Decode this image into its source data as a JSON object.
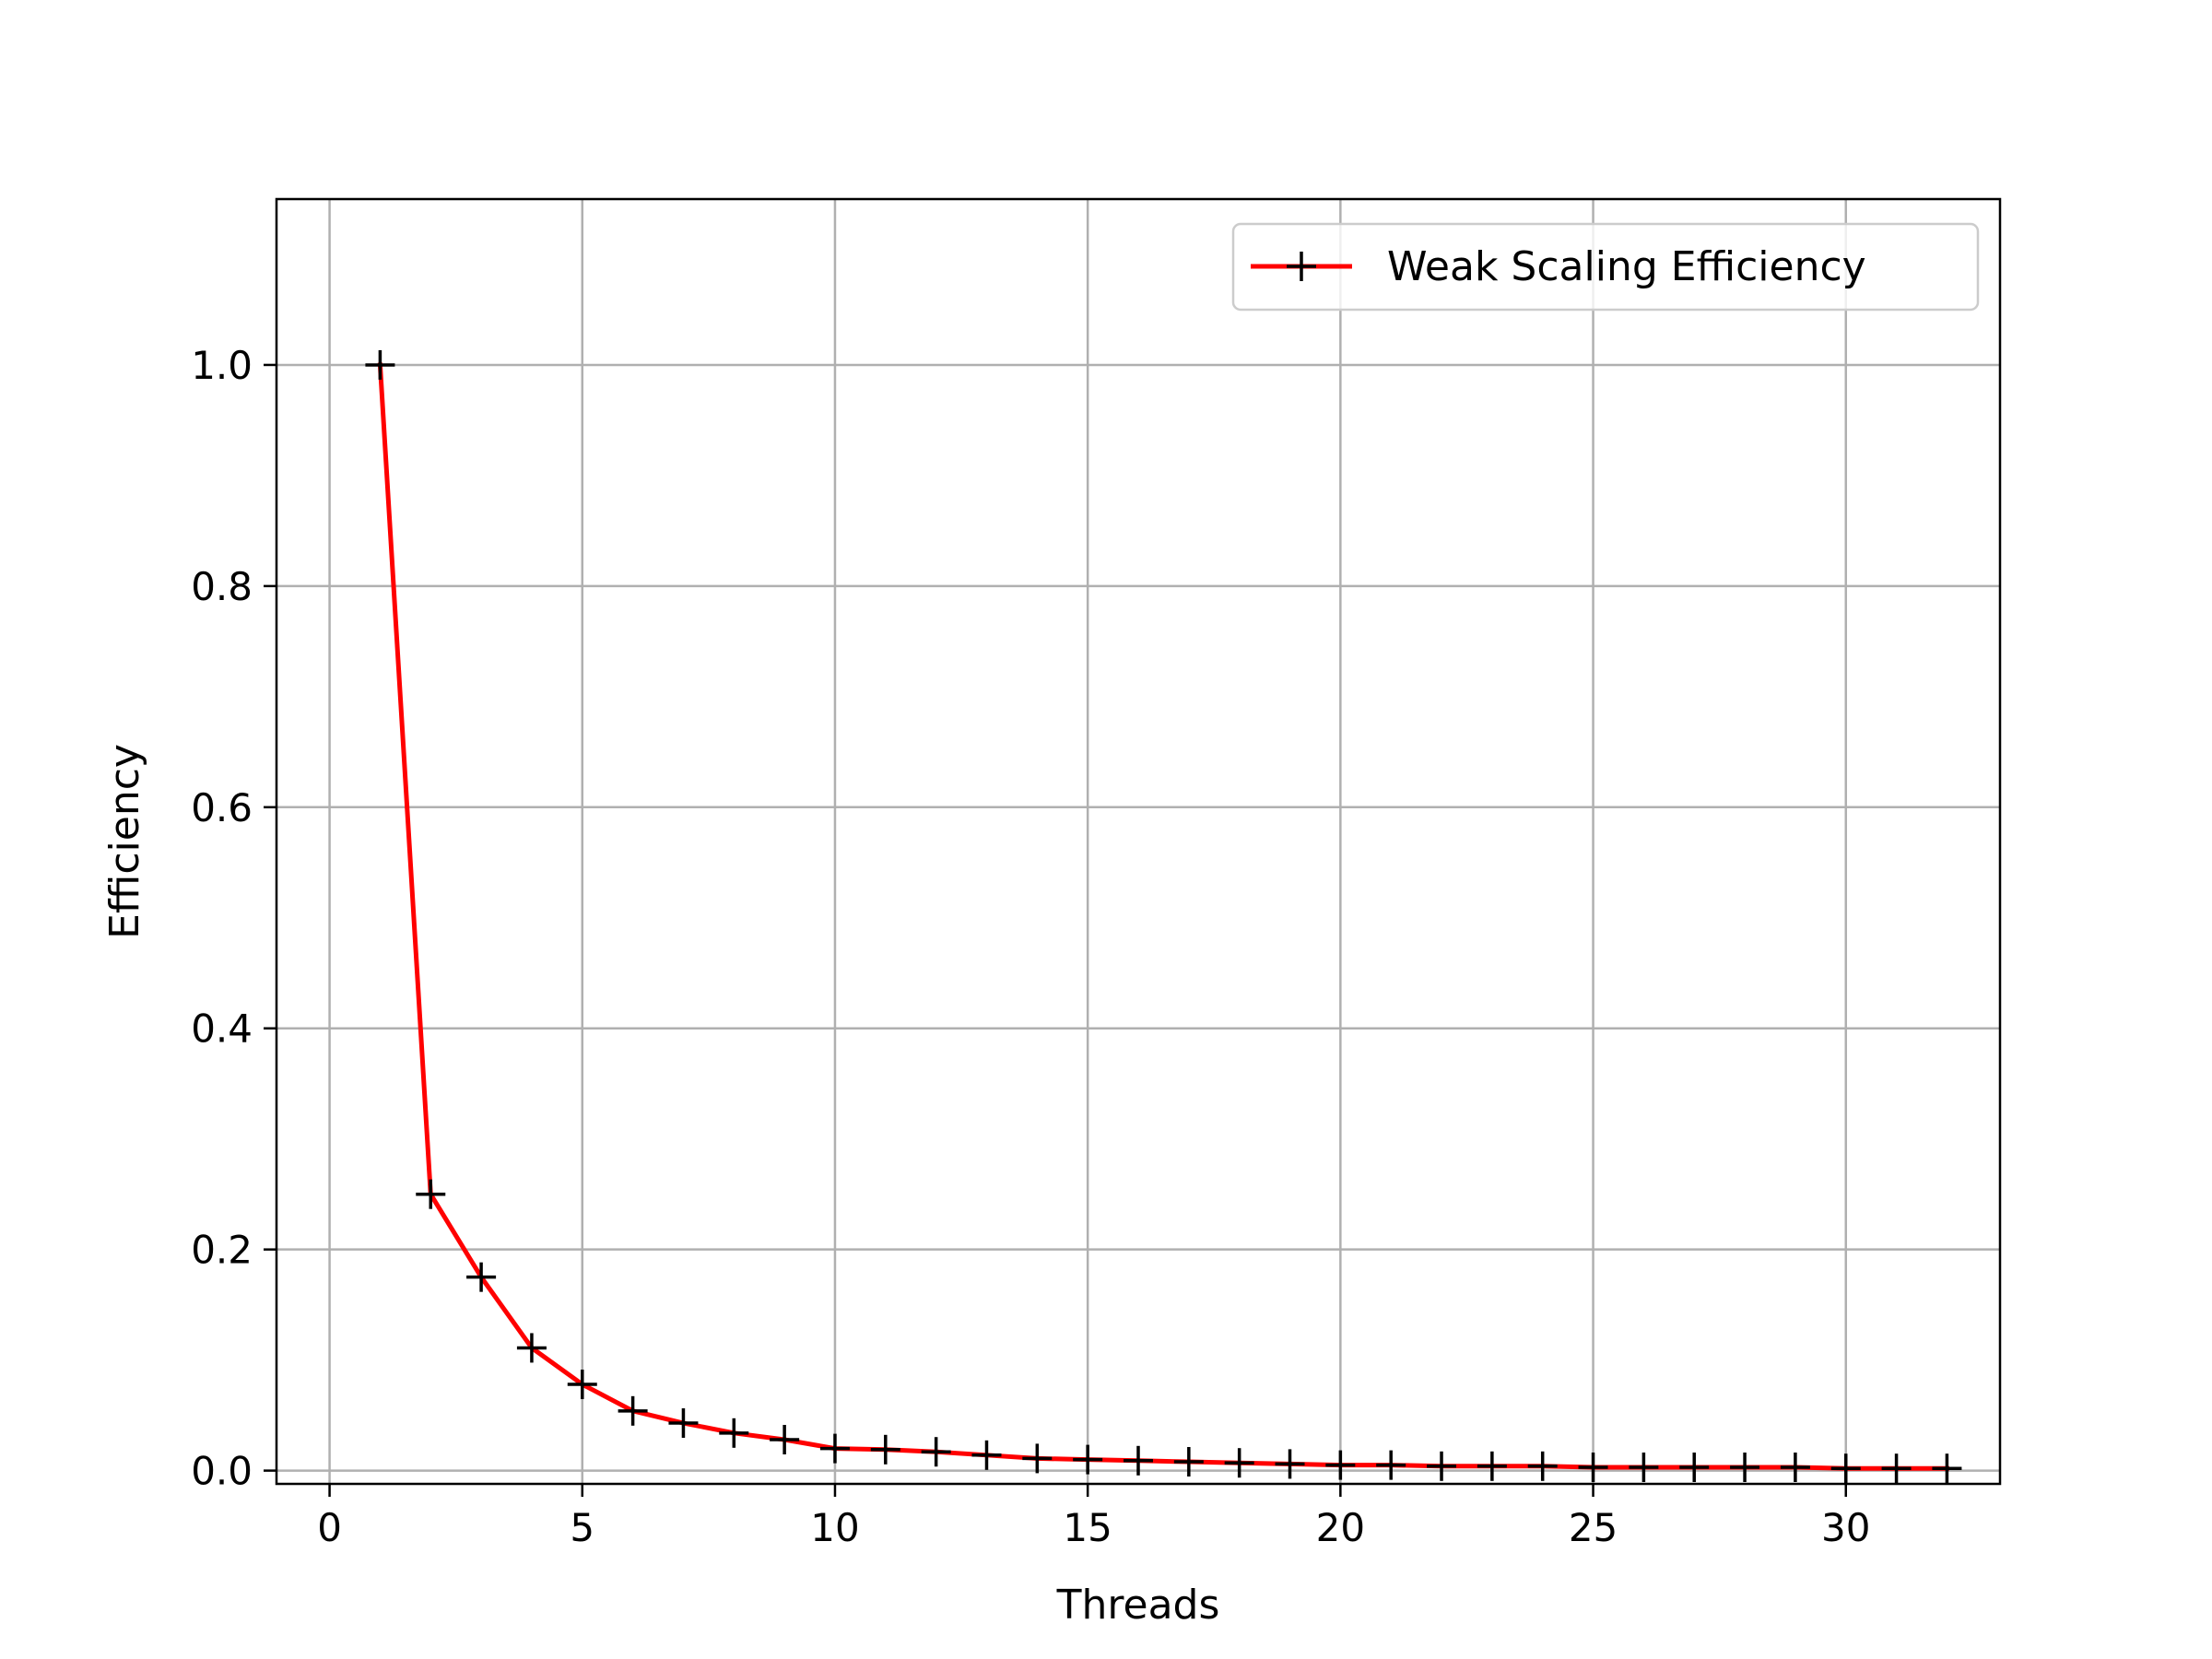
{
  "chart_data": {
    "type": "line",
    "title": "",
    "xlabel": "Threads",
    "ylabel": "Efficiency",
    "xlim": [
      -1.05,
      33.05
    ],
    "ylim": [
      -0.012,
      1.15
    ],
    "xticks": [
      0,
      5,
      10,
      15,
      20,
      25,
      30
    ],
    "yticks": [
      0.0,
      0.2,
      0.4,
      0.6,
      0.8,
      1.0
    ],
    "xtick_labels": [
      "0",
      "5",
      "10",
      "15",
      "20",
      "25",
      "30"
    ],
    "ytick_labels": [
      "0.0",
      "0.2",
      "0.4",
      "0.6",
      "0.8",
      "1.0"
    ],
    "grid": true,
    "legend_position": "top-right",
    "series": [
      {
        "name": "Weak Scaling Efficiency",
        "color": "#ff0000",
        "marker": "+",
        "marker_color": "#000000",
        "x": [
          1,
          2,
          3,
          4,
          5,
          6,
          7,
          8,
          9,
          10,
          11,
          12,
          13,
          14,
          15,
          16,
          17,
          18,
          19,
          20,
          21,
          22,
          23,
          24,
          25,
          26,
          27,
          28,
          29,
          30,
          31,
          32
        ],
        "y": [
          1.0,
          0.25,
          0.175,
          0.111,
          0.078,
          0.054,
          0.043,
          0.034,
          0.028,
          0.02,
          0.019,
          0.017,
          0.014,
          0.011,
          0.01,
          0.009,
          0.008,
          0.007,
          0.006,
          0.005,
          0.005,
          0.004,
          0.004,
          0.004,
          0.003,
          0.003,
          0.003,
          0.003,
          0.003,
          0.002,
          0.002,
          0.002
        ]
      }
    ]
  }
}
